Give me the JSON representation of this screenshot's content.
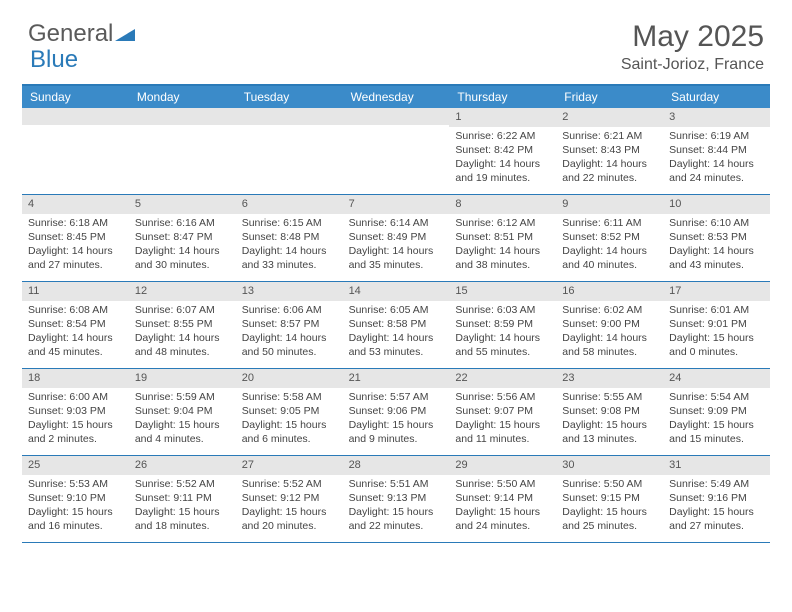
{
  "brand": {
    "part1": "General",
    "part2": "Blue"
  },
  "title": "May 2025",
  "location": "Saint-Jorioz, France",
  "colors": {
    "header_bar": "#3b8bc9",
    "border": "#2a7ab8",
    "daynum_bg": "#e6e6e6",
    "text": "#444444",
    "title_text": "#555555"
  },
  "day_names": [
    "Sunday",
    "Monday",
    "Tuesday",
    "Wednesday",
    "Thursday",
    "Friday",
    "Saturday"
  ],
  "weeks": [
    [
      {
        "num": "",
        "lines": [
          "",
          "",
          "",
          ""
        ]
      },
      {
        "num": "",
        "lines": [
          "",
          "",
          "",
          ""
        ]
      },
      {
        "num": "",
        "lines": [
          "",
          "",
          "",
          ""
        ]
      },
      {
        "num": "",
        "lines": [
          "",
          "",
          "",
          ""
        ]
      },
      {
        "num": "1",
        "lines": [
          "Sunrise: 6:22 AM",
          "Sunset: 8:42 PM",
          "Daylight: 14 hours",
          "and 19 minutes."
        ]
      },
      {
        "num": "2",
        "lines": [
          "Sunrise: 6:21 AM",
          "Sunset: 8:43 PM",
          "Daylight: 14 hours",
          "and 22 minutes."
        ]
      },
      {
        "num": "3",
        "lines": [
          "Sunrise: 6:19 AM",
          "Sunset: 8:44 PM",
          "Daylight: 14 hours",
          "and 24 minutes."
        ]
      }
    ],
    [
      {
        "num": "4",
        "lines": [
          "Sunrise: 6:18 AM",
          "Sunset: 8:45 PM",
          "Daylight: 14 hours",
          "and 27 minutes."
        ]
      },
      {
        "num": "5",
        "lines": [
          "Sunrise: 6:16 AM",
          "Sunset: 8:47 PM",
          "Daylight: 14 hours",
          "and 30 minutes."
        ]
      },
      {
        "num": "6",
        "lines": [
          "Sunrise: 6:15 AM",
          "Sunset: 8:48 PM",
          "Daylight: 14 hours",
          "and 33 minutes."
        ]
      },
      {
        "num": "7",
        "lines": [
          "Sunrise: 6:14 AM",
          "Sunset: 8:49 PM",
          "Daylight: 14 hours",
          "and 35 minutes."
        ]
      },
      {
        "num": "8",
        "lines": [
          "Sunrise: 6:12 AM",
          "Sunset: 8:51 PM",
          "Daylight: 14 hours",
          "and 38 minutes."
        ]
      },
      {
        "num": "9",
        "lines": [
          "Sunrise: 6:11 AM",
          "Sunset: 8:52 PM",
          "Daylight: 14 hours",
          "and 40 minutes."
        ]
      },
      {
        "num": "10",
        "lines": [
          "Sunrise: 6:10 AM",
          "Sunset: 8:53 PM",
          "Daylight: 14 hours",
          "and 43 minutes."
        ]
      }
    ],
    [
      {
        "num": "11",
        "lines": [
          "Sunrise: 6:08 AM",
          "Sunset: 8:54 PM",
          "Daylight: 14 hours",
          "and 45 minutes."
        ]
      },
      {
        "num": "12",
        "lines": [
          "Sunrise: 6:07 AM",
          "Sunset: 8:55 PM",
          "Daylight: 14 hours",
          "and 48 minutes."
        ]
      },
      {
        "num": "13",
        "lines": [
          "Sunrise: 6:06 AM",
          "Sunset: 8:57 PM",
          "Daylight: 14 hours",
          "and 50 minutes."
        ]
      },
      {
        "num": "14",
        "lines": [
          "Sunrise: 6:05 AM",
          "Sunset: 8:58 PM",
          "Daylight: 14 hours",
          "and 53 minutes."
        ]
      },
      {
        "num": "15",
        "lines": [
          "Sunrise: 6:03 AM",
          "Sunset: 8:59 PM",
          "Daylight: 14 hours",
          "and 55 minutes."
        ]
      },
      {
        "num": "16",
        "lines": [
          "Sunrise: 6:02 AM",
          "Sunset: 9:00 PM",
          "Daylight: 14 hours",
          "and 58 minutes."
        ]
      },
      {
        "num": "17",
        "lines": [
          "Sunrise: 6:01 AM",
          "Sunset: 9:01 PM",
          "Daylight: 15 hours",
          "and 0 minutes."
        ]
      }
    ],
    [
      {
        "num": "18",
        "lines": [
          "Sunrise: 6:00 AM",
          "Sunset: 9:03 PM",
          "Daylight: 15 hours",
          "and 2 minutes."
        ]
      },
      {
        "num": "19",
        "lines": [
          "Sunrise: 5:59 AM",
          "Sunset: 9:04 PM",
          "Daylight: 15 hours",
          "and 4 minutes."
        ]
      },
      {
        "num": "20",
        "lines": [
          "Sunrise: 5:58 AM",
          "Sunset: 9:05 PM",
          "Daylight: 15 hours",
          "and 6 minutes."
        ]
      },
      {
        "num": "21",
        "lines": [
          "Sunrise: 5:57 AM",
          "Sunset: 9:06 PM",
          "Daylight: 15 hours",
          "and 9 minutes."
        ]
      },
      {
        "num": "22",
        "lines": [
          "Sunrise: 5:56 AM",
          "Sunset: 9:07 PM",
          "Daylight: 15 hours",
          "and 11 minutes."
        ]
      },
      {
        "num": "23",
        "lines": [
          "Sunrise: 5:55 AM",
          "Sunset: 9:08 PM",
          "Daylight: 15 hours",
          "and 13 minutes."
        ]
      },
      {
        "num": "24",
        "lines": [
          "Sunrise: 5:54 AM",
          "Sunset: 9:09 PM",
          "Daylight: 15 hours",
          "and 15 minutes."
        ]
      }
    ],
    [
      {
        "num": "25",
        "lines": [
          "Sunrise: 5:53 AM",
          "Sunset: 9:10 PM",
          "Daylight: 15 hours",
          "and 16 minutes."
        ]
      },
      {
        "num": "26",
        "lines": [
          "Sunrise: 5:52 AM",
          "Sunset: 9:11 PM",
          "Daylight: 15 hours",
          "and 18 minutes."
        ]
      },
      {
        "num": "27",
        "lines": [
          "Sunrise: 5:52 AM",
          "Sunset: 9:12 PM",
          "Daylight: 15 hours",
          "and 20 minutes."
        ]
      },
      {
        "num": "28",
        "lines": [
          "Sunrise: 5:51 AM",
          "Sunset: 9:13 PM",
          "Daylight: 15 hours",
          "and 22 minutes."
        ]
      },
      {
        "num": "29",
        "lines": [
          "Sunrise: 5:50 AM",
          "Sunset: 9:14 PM",
          "Daylight: 15 hours",
          "and 24 minutes."
        ]
      },
      {
        "num": "30",
        "lines": [
          "Sunrise: 5:50 AM",
          "Sunset: 9:15 PM",
          "Daylight: 15 hours",
          "and 25 minutes."
        ]
      },
      {
        "num": "31",
        "lines": [
          "Sunrise: 5:49 AM",
          "Sunset: 9:16 PM",
          "Daylight: 15 hours",
          "and 27 minutes."
        ]
      }
    ]
  ]
}
